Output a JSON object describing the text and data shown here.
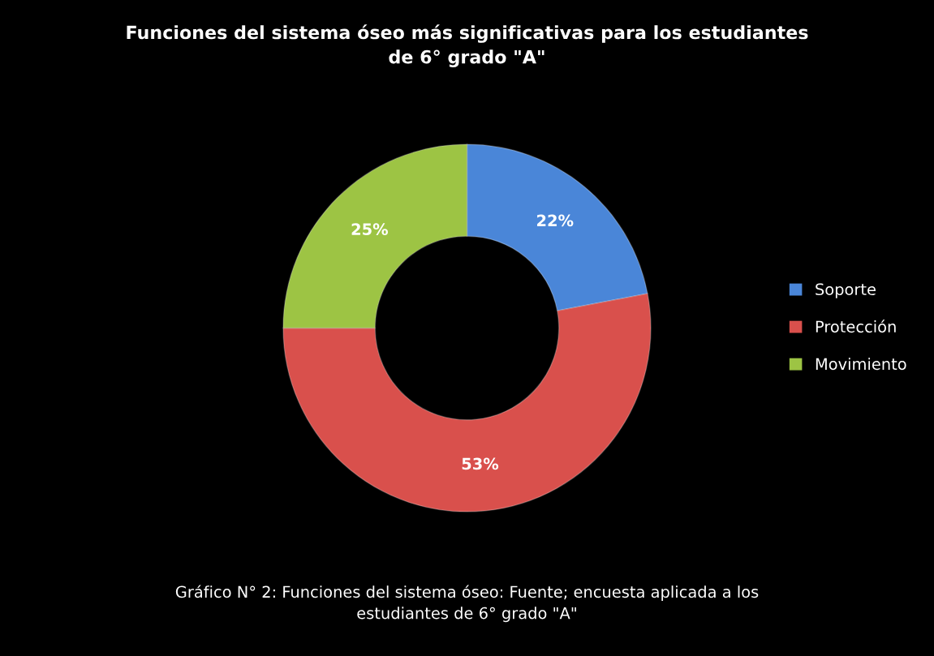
{
  "chart_data": {
    "type": "donut",
    "title": "Funciones del sistema óseo más significativas para los estudiantes\nde 6° grado \"A\"",
    "categories": [
      "Soporte",
      "Protección",
      "Movimiento"
    ],
    "values": [
      22,
      53,
      25
    ],
    "value_labels": [
      "22%",
      "53%",
      "25%"
    ],
    "colors": [
      "#4a86d8",
      "#d9504c",
      "#9dc444"
    ],
    "legend": "right",
    "annotations": [
      "Gráfico N° 2: Funciones del sistema óseo: Fuente; encuesta aplicada a los\nestudiantes de 6° grado \"A\""
    ]
  }
}
